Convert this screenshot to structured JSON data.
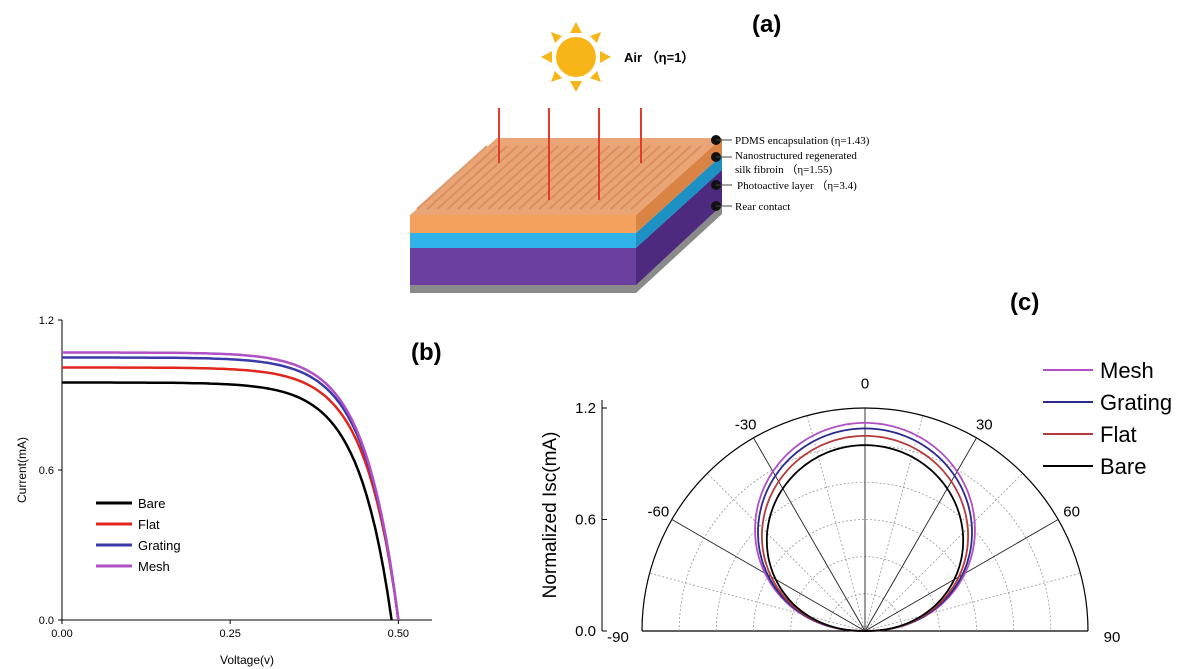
{
  "panel_a": {
    "label": "(a)",
    "air_label": "Air （η=1）",
    "layers": [
      {
        "label": "PDMS encapsulation (η=1.43)",
        "color": "#f4a15d"
      },
      {
        "label": "Nanostructured regenerated",
        "label2": "silk fibroin （η=1.55)",
        "color": "#2fb3e8"
      },
      {
        "label": "Photoactive layer （η=3.4)",
        "color": "#6b3fa0"
      },
      {
        "label": "Rear contact",
        "color": "#8a8a8a"
      }
    ],
    "sun_color": "#f7b519",
    "ray_color": "#e53b2c"
  },
  "panel_b": {
    "label": "(b)",
    "chart_data": {
      "type": "line",
      "xlabel": "Voltage(v)",
      "ylabel": "Current(mA)",
      "xlim": [
        0,
        0.55
      ],
      "ylim": [
        0,
        1.2
      ],
      "xticks": [
        "0.00",
        "0.25",
        "0.50"
      ],
      "yticks": [
        "0.0",
        "0.6",
        "1.2"
      ],
      "legend_position": "lower-left",
      "series": [
        {
          "name": "Bare",
          "color": "#000000",
          "isc": 0.95,
          "voc": 0.49
        },
        {
          "name": "Flat",
          "color": "#e3261c",
          "isc": 1.01,
          "voc": 0.5
        },
        {
          "name": "Grating",
          "color": "#3a3aa8",
          "isc": 1.05,
          "voc": 0.5
        },
        {
          "name": "Mesh",
          "color": "#b14fc5",
          "isc": 1.07,
          "voc": 0.5
        }
      ]
    }
  },
  "panel_c": {
    "label": "(c)",
    "chart_data": {
      "type": "polar",
      "ylabel": "Normalized Isc(mA)",
      "rlim": [
        0,
        1.2
      ],
      "rticks": [
        "0.0",
        "0.6",
        "1.2"
      ],
      "angle_ticks": [
        "-90",
        "-60",
        "-30",
        "0",
        "30",
        "60",
        "90"
      ],
      "legend_position": "right",
      "series": [
        {
          "name": "Mesh",
          "color": "#b14fc5",
          "peak": 1.12
        },
        {
          "name": "Grating",
          "color": "#2a2a8c",
          "peak": 1.09
        },
        {
          "name": "Flat",
          "color": "#b63a3a",
          "peak": 1.05
        },
        {
          "name": "Bare",
          "color": "#000000",
          "peak": 1.0
        }
      ]
    }
  }
}
